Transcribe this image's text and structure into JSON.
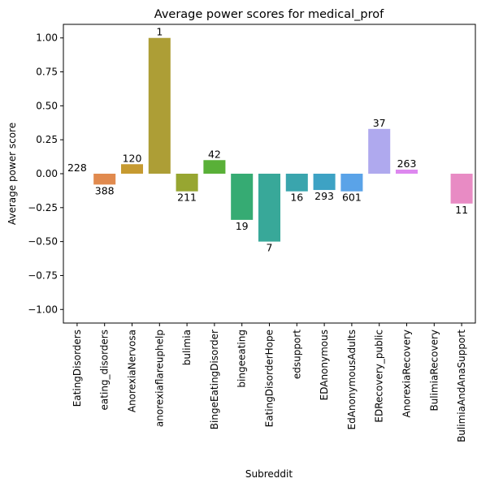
{
  "chart_data": {
    "type": "bar",
    "title": "Average power scores for medical_prof",
    "xlabel": "Subreddit",
    "ylabel": "Average power score",
    "ylim": [
      -1.1,
      1.1
    ],
    "yticks": [
      1.0,
      0.75,
      0.5,
      0.25,
      0.0,
      -0.25,
      -0.5,
      -0.75,
      -1.0
    ],
    "ytick_labels": [
      "1.00",
      "0.75",
      "0.50",
      "0.25",
      "0.00",
      "−0.25",
      "−0.50",
      "−0.75",
      "−1.00"
    ],
    "grid": false,
    "legend": "none",
    "categories": [
      "EatingDisorders",
      "eating_disorders",
      "AnorexiaNervosa",
      "anorexiaflareuphelp",
      "bulimia",
      "BingeEatingDisorder",
      "bingeeating",
      "EatingDisorderHope",
      "edsupport",
      "EDAnonymous",
      "EdAnonymousAdults",
      "EDRecovery_public",
      "AnorexiaRecovery",
      "BulimiaRecovery",
      "BulimiaAndAnaSupport"
    ],
    "values": [
      0.0,
      -0.08,
      0.07,
      1.0,
      -0.13,
      0.1,
      -0.34,
      -0.5,
      -0.13,
      -0.12,
      -0.13,
      0.33,
      0.03,
      0.0,
      -0.22
    ],
    "bar_labels": [
      "228",
      "388",
      "120",
      "1",
      "211",
      "42",
      "19",
      "7",
      "16",
      "293",
      "601",
      "37",
      "263",
      "",
      "11"
    ],
    "colors": [
      "#f77189",
      "#e18a4e",
      "#c69a30",
      "#ad9e36",
      "#97a631",
      "#59b038",
      "#36ab73",
      "#38a899",
      "#3aa5ad",
      "#3da2c4",
      "#5aa3e8",
      "#afa9ee",
      "#dd88ef",
      "#f66bd9",
      "#e88bc4"
    ]
  }
}
